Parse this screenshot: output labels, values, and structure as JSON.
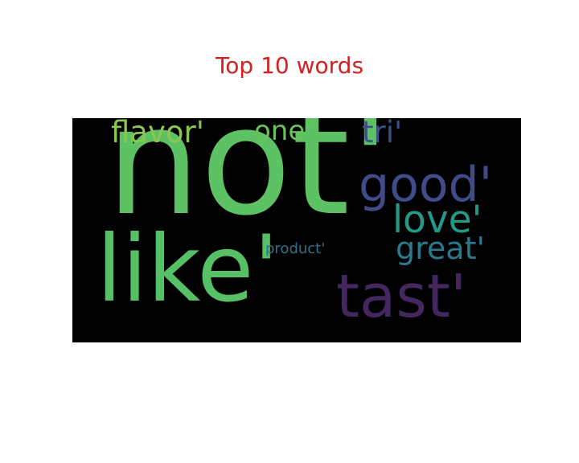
{
  "chart_data": {
    "type": "wordcloud",
    "title": "Top 10 words",
    "title_color": "#d62020",
    "background": "#000000",
    "words": [
      {
        "text": "not'",
        "color": "#5cc263"
      },
      {
        "text": "like'",
        "color": "#55c066"
      },
      {
        "text": "tast'",
        "color": "#44275f"
      },
      {
        "text": "good'",
        "color": "#404b8a"
      },
      {
        "text": "love'",
        "color": "#239a89"
      },
      {
        "text": "great'",
        "color": "#2a7a8e"
      },
      {
        "text": "flavor'",
        "color": "#8cc650"
      },
      {
        "text": "one'",
        "color": "#6bc25d"
      },
      {
        "text": "tri'",
        "color": "#3c4f8a"
      },
      {
        "text": "product'",
        "color": "#2f6f8e"
      }
    ]
  }
}
